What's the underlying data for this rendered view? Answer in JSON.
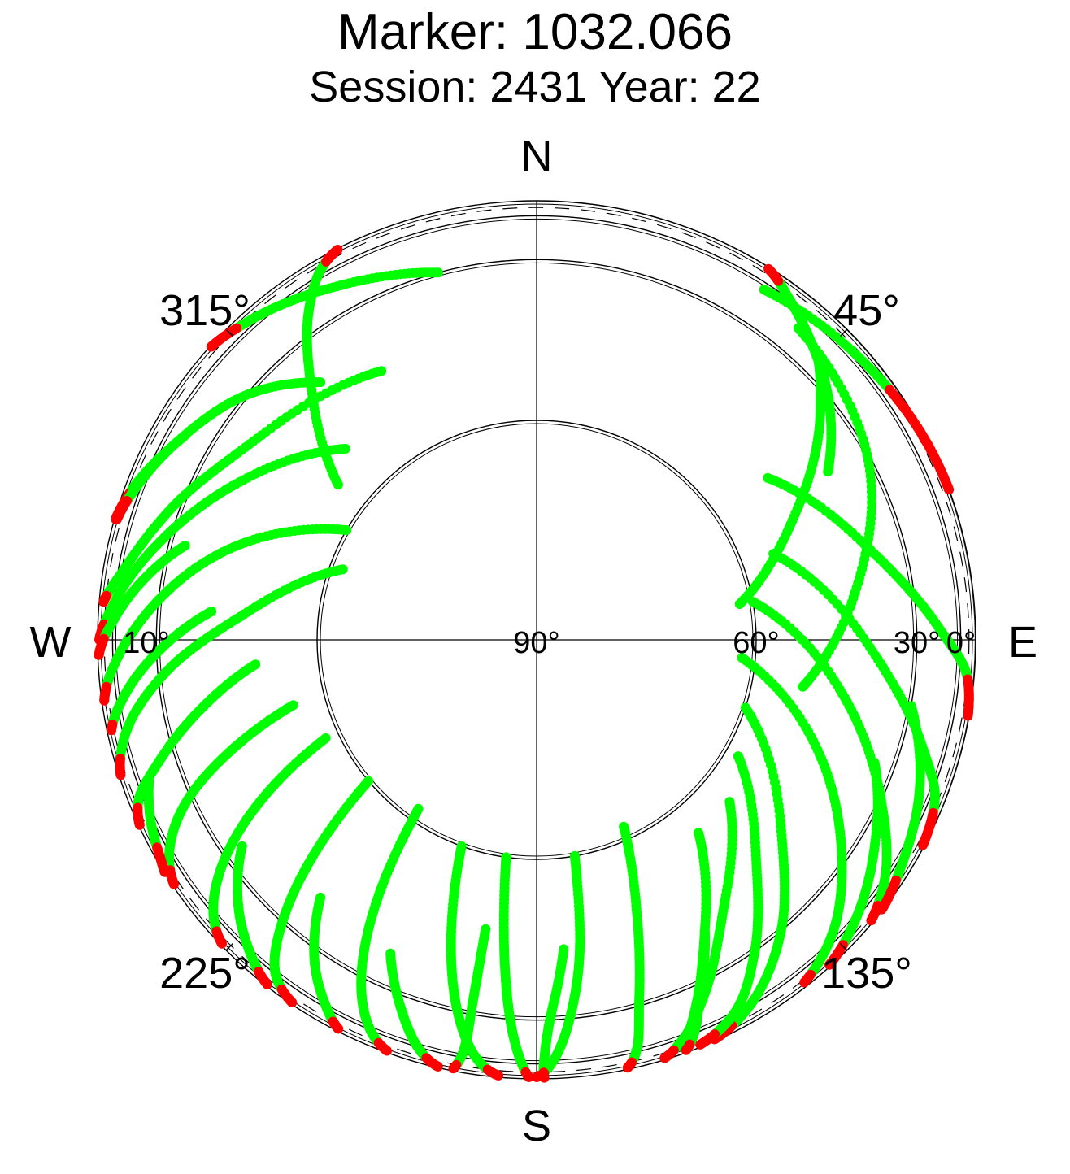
{
  "chart_data": {
    "type": "scatter",
    "projection": "polar",
    "title": "Marker: 1032.066",
    "subtitle": "Session: 2431 Year: 22",
    "compass": {
      "north": "N",
      "south": "S",
      "east": "E",
      "west": "W"
    },
    "azimuth_labels": [
      {
        "label": "45°",
        "azimuth": 45
      },
      {
        "label": "135°",
        "azimuth": 135
      },
      {
        "label": "225°",
        "azimuth": 225
      },
      {
        "label": "315°",
        "azimuth": 315
      }
    ],
    "elevation_labels": [
      {
        "label": "0°",
        "elevation": 0
      },
      {
        "label": "30°",
        "elevation": 30
      },
      {
        "label": "60°",
        "elevation": 60
      },
      {
        "label": "90°",
        "elevation": 90
      },
      {
        "label": "10°",
        "elevation": 10
      }
    ],
    "elevation_rings": [
      0,
      15,
      30,
      60
    ],
    "cutoff_elevation": 10,
    "obstructed_sector": {
      "azimuth_from": 0,
      "azimuth_to": 150,
      "max_elevation": 3,
      "color": "#c8c8c8"
    },
    "colors": {
      "accepted": "#00ff00",
      "rejected": "#ff0000",
      "mask": "#c8c8c8"
    },
    "series": [
      {
        "arcs": [
          {
            "points": [
              [
                308,
                55
              ],
              [
                318,
                40
              ],
              [
                325,
                25
              ],
              [
                330,
                12
              ],
              [
                333,
                4
              ]
            ],
            "low_rejected": true
          },
          {
            "points": [
              [
                320,
                40
              ],
              [
                310,
                30
              ],
              [
                298,
                20
              ],
              [
                290,
                10
              ],
              [
                286,
                4
              ]
            ],
            "low_rejected": true
          },
          {
            "points": [
              [
                330,
                45
              ],
              [
                305,
                38
              ],
              [
                290,
                28
              ],
              [
                280,
                18
              ],
              [
                275,
                8
              ]
            ],
            "low_rejected": true
          },
          {
            "points": [
              [
                345,
                30
              ],
              [
                330,
                22
              ],
              [
                318,
                12
              ],
              [
                312,
                4
              ]
            ],
            "low_rejected": true
          },
          {
            "points": [
              [
                315,
                52
              ],
              [
                298,
                40
              ],
              [
                285,
                28
              ],
              [
                275,
                15
              ],
              [
                270,
                5
              ]
            ],
            "low_rejected": true
          },
          {
            "points": [
              [
                300,
                60
              ],
              [
                288,
                45
              ],
              [
                276,
                30
              ],
              [
                268,
                18
              ],
              [
                262,
                6
              ]
            ],
            "low_rejected": true
          },
          {
            "points": [
              [
                290,
                62
              ],
              [
                275,
                48
              ],
              [
                265,
                32
              ],
              [
                258,
                18
              ],
              [
                252,
                5
              ]
            ],
            "low_rejected": true
          },
          {
            "points": [
              [
                60,
                40
              ],
              [
                50,
                30
              ],
              [
                42,
                22
              ],
              [
                36,
                14
              ],
              [
                32,
                5
              ]
            ],
            "low_rejected": true
          },
          {
            "points": [
              [
                45,
                25
              ],
              [
                52,
                35
              ],
              [
                65,
                50
              ],
              [
                80,
                62
              ]
            ],
            "low_rejected": false
          },
          {
            "points": [
              [
                40,
                22
              ],
              [
                60,
                30
              ],
              [
                80,
                42
              ],
              [
                100,
                52
              ]
            ],
            "low_rejected": true
          },
          {
            "points": [
              [
                33,
                18
              ],
              [
                50,
                12
              ],
              [
                62,
                6
              ],
              [
                70,
                2
              ]
            ],
            "low_rejected": true
          },
          {
            "points": [
              [
                55,
                50
              ],
              [
                75,
                38
              ],
              [
                88,
                24
              ],
              [
                95,
                10
              ],
              [
                100,
                4
              ]
            ],
            "low_rejected": true
          },
          {
            "points": [
              [
                70,
                55
              ],
              [
                92,
                40
              ],
              [
                105,
                25
              ],
              [
                112,
                12
              ],
              [
                118,
                5
              ]
            ],
            "low_rejected": true
          },
          {
            "points": [
              [
                80,
                60
              ],
              [
                100,
                45
              ],
              [
                115,
                30
              ],
              [
                125,
                15
              ],
              [
                130,
                6
              ]
            ],
            "low_rejected": true
          },
          {
            "points": [
              [
                95,
                62
              ],
              [
                112,
                46
              ],
              [
                125,
                32
              ],
              [
                135,
                18
              ],
              [
                142,
                8
              ]
            ],
            "low_rejected": true
          },
          {
            "points": [
              [
                108,
                60
              ],
              [
                128,
                45
              ],
              [
                140,
                30
              ],
              [
                150,
                15
              ],
              [
                156,
                5
              ]
            ],
            "low_rejected": true
          },
          {
            "points": [
              [
                170,
                60
              ],
              [
                172,
                45
              ],
              [
                175,
                30
              ],
              [
                178,
                15
              ],
              [
                180,
                5
              ]
            ],
            "low_rejected": true
          },
          {
            "points": [
              [
                188,
                60
              ],
              [
                186,
                45
              ],
              [
                184,
                30
              ],
              [
                182,
                15
              ],
              [
                181,
                5
              ]
            ],
            "low_rejected": true
          },
          {
            "points": [
              [
                200,
                60
              ],
              [
                196,
                45
              ],
              [
                192,
                30
              ],
              [
                188,
                15
              ],
              [
                185,
                5
              ]
            ],
            "low_rejected": true
          },
          {
            "points": [
              [
                155,
                62
              ],
              [
                160,
                48
              ],
              [
                164,
                32
              ],
              [
                166,
                18
              ],
              [
                168,
                5
              ]
            ],
            "low_rejected": true
          },
          {
            "points": [
              [
                215,
                62
              ],
              [
                212,
                48
              ],
              [
                208,
                32
              ],
              [
                204,
                18
              ],
              [
                200,
                5
              ]
            ],
            "low_rejected": true
          },
          {
            "points": [
              [
                230,
                60
              ],
              [
                226,
                45
              ],
              [
                222,
                30
              ],
              [
                218,
                15
              ],
              [
                214,
                5
              ]
            ],
            "low_rejected": true
          },
          {
            "points": [
              [
                245,
                58
              ],
              [
                240,
                44
              ],
              [
                235,
                30
              ],
              [
                230,
                16
              ],
              [
                226,
                5
              ]
            ],
            "low_rejected": true
          },
          {
            "points": [
              [
                255,
                55
              ],
              [
                250,
                42
              ],
              [
                245,
                28
              ],
              [
                240,
                15
              ],
              [
                236,
                5
              ]
            ],
            "low_rejected": true
          },
          {
            "points": [
              [
                265,
                50
              ],
              [
                258,
                38
              ],
              [
                252,
                25
              ],
              [
                248,
                12
              ],
              [
                245,
                4
              ]
            ],
            "low_rejected": true
          },
          {
            "points": [
              [
                275,
                42
              ],
              [
                268,
                30
              ],
              [
                262,
                18
              ],
              [
                258,
                8
              ]
            ],
            "low_rejected": true
          },
          {
            "points": [
              [
                120,
                58
              ],
              [
                135,
                45
              ],
              [
                145,
                30
              ],
              [
                152,
                16
              ],
              [
                158,
                6
              ]
            ],
            "low_rejected": true
          },
          {
            "points": [
              [
                130,
                55
              ],
              [
                145,
                42
              ],
              [
                154,
                28
              ],
              [
                160,
                14
              ],
              [
                163,
                5
              ]
            ],
            "low_rejected": true
          },
          {
            "points": [
              [
                140,
                55
              ],
              [
                150,
                40
              ],
              [
                156,
                26
              ],
              [
                160,
                12
              ]
            ],
            "low_rejected": true
          },
          {
            "points": [
              [
                220,
                40
              ],
              [
                215,
                28
              ],
              [
                210,
                16
              ],
              [
                207,
                6
              ]
            ],
            "low_rejected": true
          },
          {
            "points": [
              [
                235,
                35
              ],
              [
                228,
                24
              ],
              [
                222,
                14
              ],
              [
                218,
                5
              ]
            ],
            "low_rejected": true
          },
          {
            "points": [
              [
                205,
                38
              ],
              [
                200,
                26
              ],
              [
                196,
                14
              ],
              [
                193,
                4
              ]
            ],
            "low_rejected": true
          },
          {
            "points": [
              [
                150,
                40
              ],
              [
                155,
                28
              ],
              [
                158,
                16
              ],
              [
                160,
                6
              ]
            ],
            "low_rejected": true
          },
          {
            "points": [
              [
                175,
                45
              ],
              [
                178,
                30
              ],
              [
                179,
                16
              ],
              [
                179,
                4
              ]
            ],
            "low_rejected": true
          },
          {
            "points": [
              [
                190,
                48
              ],
              [
                190,
                34
              ],
              [
                190,
                20
              ],
              [
                191,
                6
              ]
            ],
            "low_rejected": true
          },
          {
            "points": [
              [
                250,
                20
              ],
              [
                245,
                14
              ],
              [
                240,
                8
              ],
              [
                238,
                3
              ]
            ],
            "low_rejected": true
          },
          {
            "points": [
              [
                285,
                34
              ],
              [
                278,
                24
              ],
              [
                272,
                14
              ],
              [
                268,
                4
              ]
            ],
            "low_rejected": true
          },
          {
            "points": [
              [
                300,
                22
              ],
              [
                292,
                14
              ],
              [
                286,
                6
              ]
            ],
            "low_rejected": true
          },
          {
            "points": [
              [
                100,
                30
              ],
              [
                112,
                20
              ],
              [
                122,
                12
              ],
              [
                128,
                4
              ]
            ],
            "low_rejected": true
          },
          {
            "points": [
              [
                110,
                35
              ],
              [
                122,
                25
              ],
              [
                132,
                14
              ],
              [
                138,
                5
              ]
            ],
            "low_rejected": true
          }
        ]
      }
    ]
  }
}
